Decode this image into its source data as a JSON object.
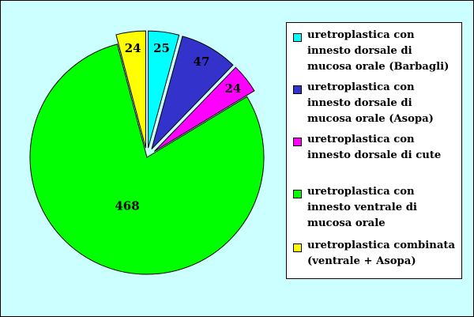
{
  "chart_data": {
    "type": "pie",
    "title": "",
    "legend_position": "right",
    "slices": [
      {
        "label": "uretroplastica con innesto dorsale di mucosa orale (Barbagli)",
        "value": 25,
        "color": "#00ffff",
        "exploded": true
      },
      {
        "label": "uretroplastica con innesto dorsale di mucosa orale (Asopa)",
        "value": 47,
        "color": "#3333cc",
        "exploded": true
      },
      {
        "label": "uretroplastica con innesto dorsale di cute",
        "value": 24,
        "color": "#ff00ff",
        "exploded": true
      },
      {
        "label": "uretroplastica con innesto ventrale di mucosa orale",
        "value": 468,
        "color": "#00ff00",
        "exploded": false
      },
      {
        "label": "uretroplastica combinata (ventrale + Asopa)",
        "value": 24,
        "color": "#ffff00",
        "exploded": true
      }
    ]
  }
}
